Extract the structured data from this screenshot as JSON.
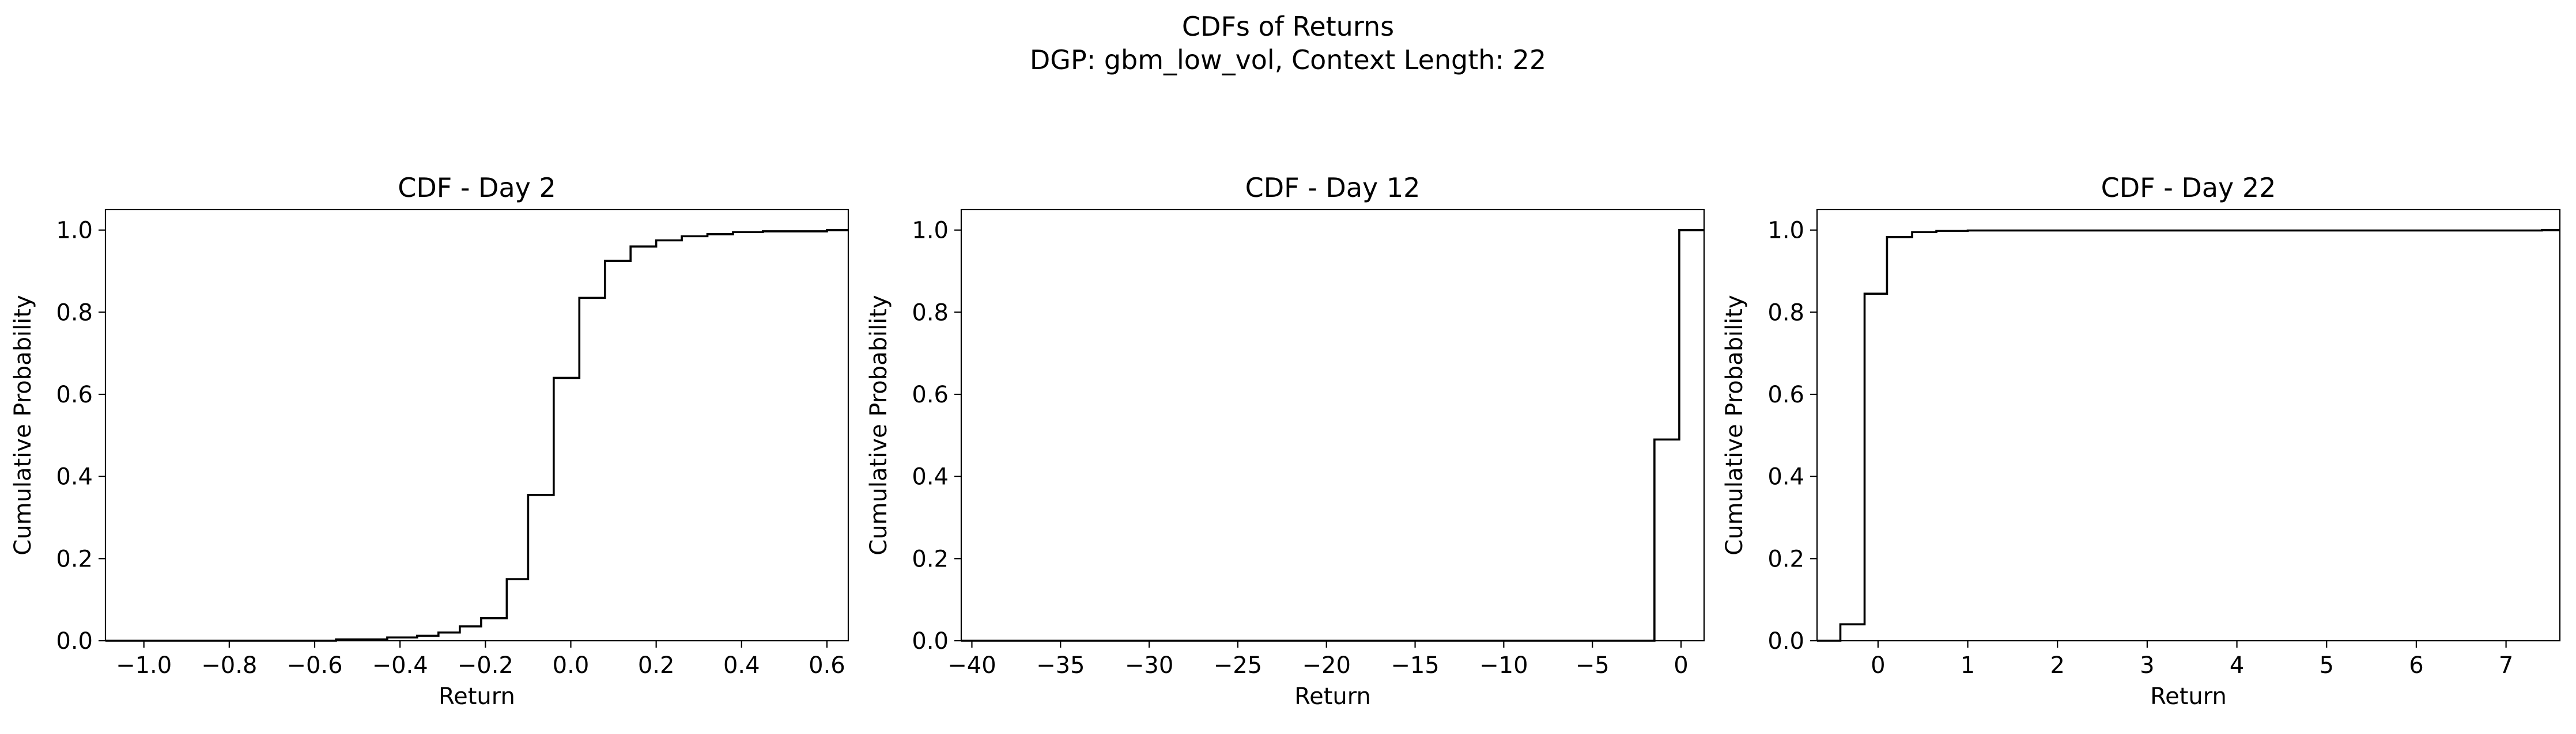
{
  "figure": {
    "title_line1": "CDFs of Returns",
    "title_line2": "DGP: gbm_low_vol, Context Length: 22"
  },
  "chart_data": [
    {
      "type": "line",
      "step": "post",
      "title": "CDF - Day 2",
      "xlabel": "Return",
      "ylabel": "Cumulative Probability",
      "xlim": [
        -1.09,
        0.65
      ],
      "ylim": [
        0,
        1.05
      ],
      "xticks": [
        -1.0,
        -0.8,
        -0.6,
        -0.4,
        -0.2,
        0.0,
        0.2,
        0.4,
        0.6
      ],
      "xtick_labels": [
        "−1.0",
        "−0.8",
        "−0.6",
        "−0.4",
        "−0.2",
        "0.0",
        "0.2",
        "0.4",
        "0.6"
      ],
      "yticks": [
        0.0,
        0.2,
        0.4,
        0.6,
        0.8,
        1.0
      ],
      "ytick_labels": [
        "0.0",
        "0.2",
        "0.4",
        "0.6",
        "0.8",
        "1.0"
      ],
      "grid": false,
      "x": [
        -1.09,
        -0.55,
        -0.43,
        -0.36,
        -0.31,
        -0.26,
        -0.21,
        -0.15,
        -0.1,
        -0.04,
        0.02,
        0.08,
        0.14,
        0.2,
        0.26,
        0.32,
        0.38,
        0.45,
        0.6,
        0.65
      ],
      "y": [
        0.0,
        0.003,
        0.008,
        0.012,
        0.02,
        0.035,
        0.055,
        0.15,
        0.355,
        0.64,
        0.835,
        0.925,
        0.96,
        0.975,
        0.985,
        0.99,
        0.995,
        0.997,
        1.0,
        1.0
      ]
    },
    {
      "type": "line",
      "step": "post",
      "title": "CDF - Day 12",
      "xlabel": "Return",
      "ylabel": "Cumulative Probability",
      "xlim": [
        -40.6,
        1.3
      ],
      "ylim": [
        0,
        1.05
      ],
      "xticks": [
        -40,
        -35,
        -30,
        -25,
        -20,
        -15,
        -10,
        -5,
        0
      ],
      "xtick_labels": [
        "−40",
        "−35",
        "−30",
        "−25",
        "−20",
        "−15",
        "−10",
        "−5",
        "0"
      ],
      "yticks": [
        0.0,
        0.2,
        0.4,
        0.6,
        0.8,
        1.0
      ],
      "ytick_labels": [
        "0.0",
        "0.2",
        "0.4",
        "0.6",
        "0.8",
        "1.0"
      ],
      "grid": false,
      "x": [
        -40.6,
        -1.5,
        -0.1,
        1.3
      ],
      "y": [
        0.0,
        0.49,
        1.0,
        1.0
      ]
    },
    {
      "type": "line",
      "step": "post",
      "title": "CDF - Day 22",
      "xlabel": "Return",
      "ylabel": "Cumulative Probability",
      "xlim": [
        -0.68,
        7.6
      ],
      "ylim": [
        0,
        1.05
      ],
      "xticks": [
        0,
        1,
        2,
        3,
        4,
        5,
        6,
        7
      ],
      "xtick_labels": [
        "0",
        "1",
        "2",
        "3",
        "4",
        "5",
        "6",
        "7"
      ],
      "yticks": [
        0.0,
        0.2,
        0.4,
        0.6,
        0.8,
        1.0
      ],
      "ytick_labels": [
        "0.0",
        "0.2",
        "0.4",
        "0.6",
        "0.8",
        "1.0"
      ],
      "grid": false,
      "x": [
        -0.68,
        -0.42,
        -0.15,
        0.1,
        0.38,
        0.65,
        1.0,
        7.4,
        7.6
      ],
      "y": [
        0.0,
        0.04,
        0.845,
        0.983,
        0.995,
        0.998,
        0.999,
        1.0,
        1.0
      ]
    }
  ]
}
